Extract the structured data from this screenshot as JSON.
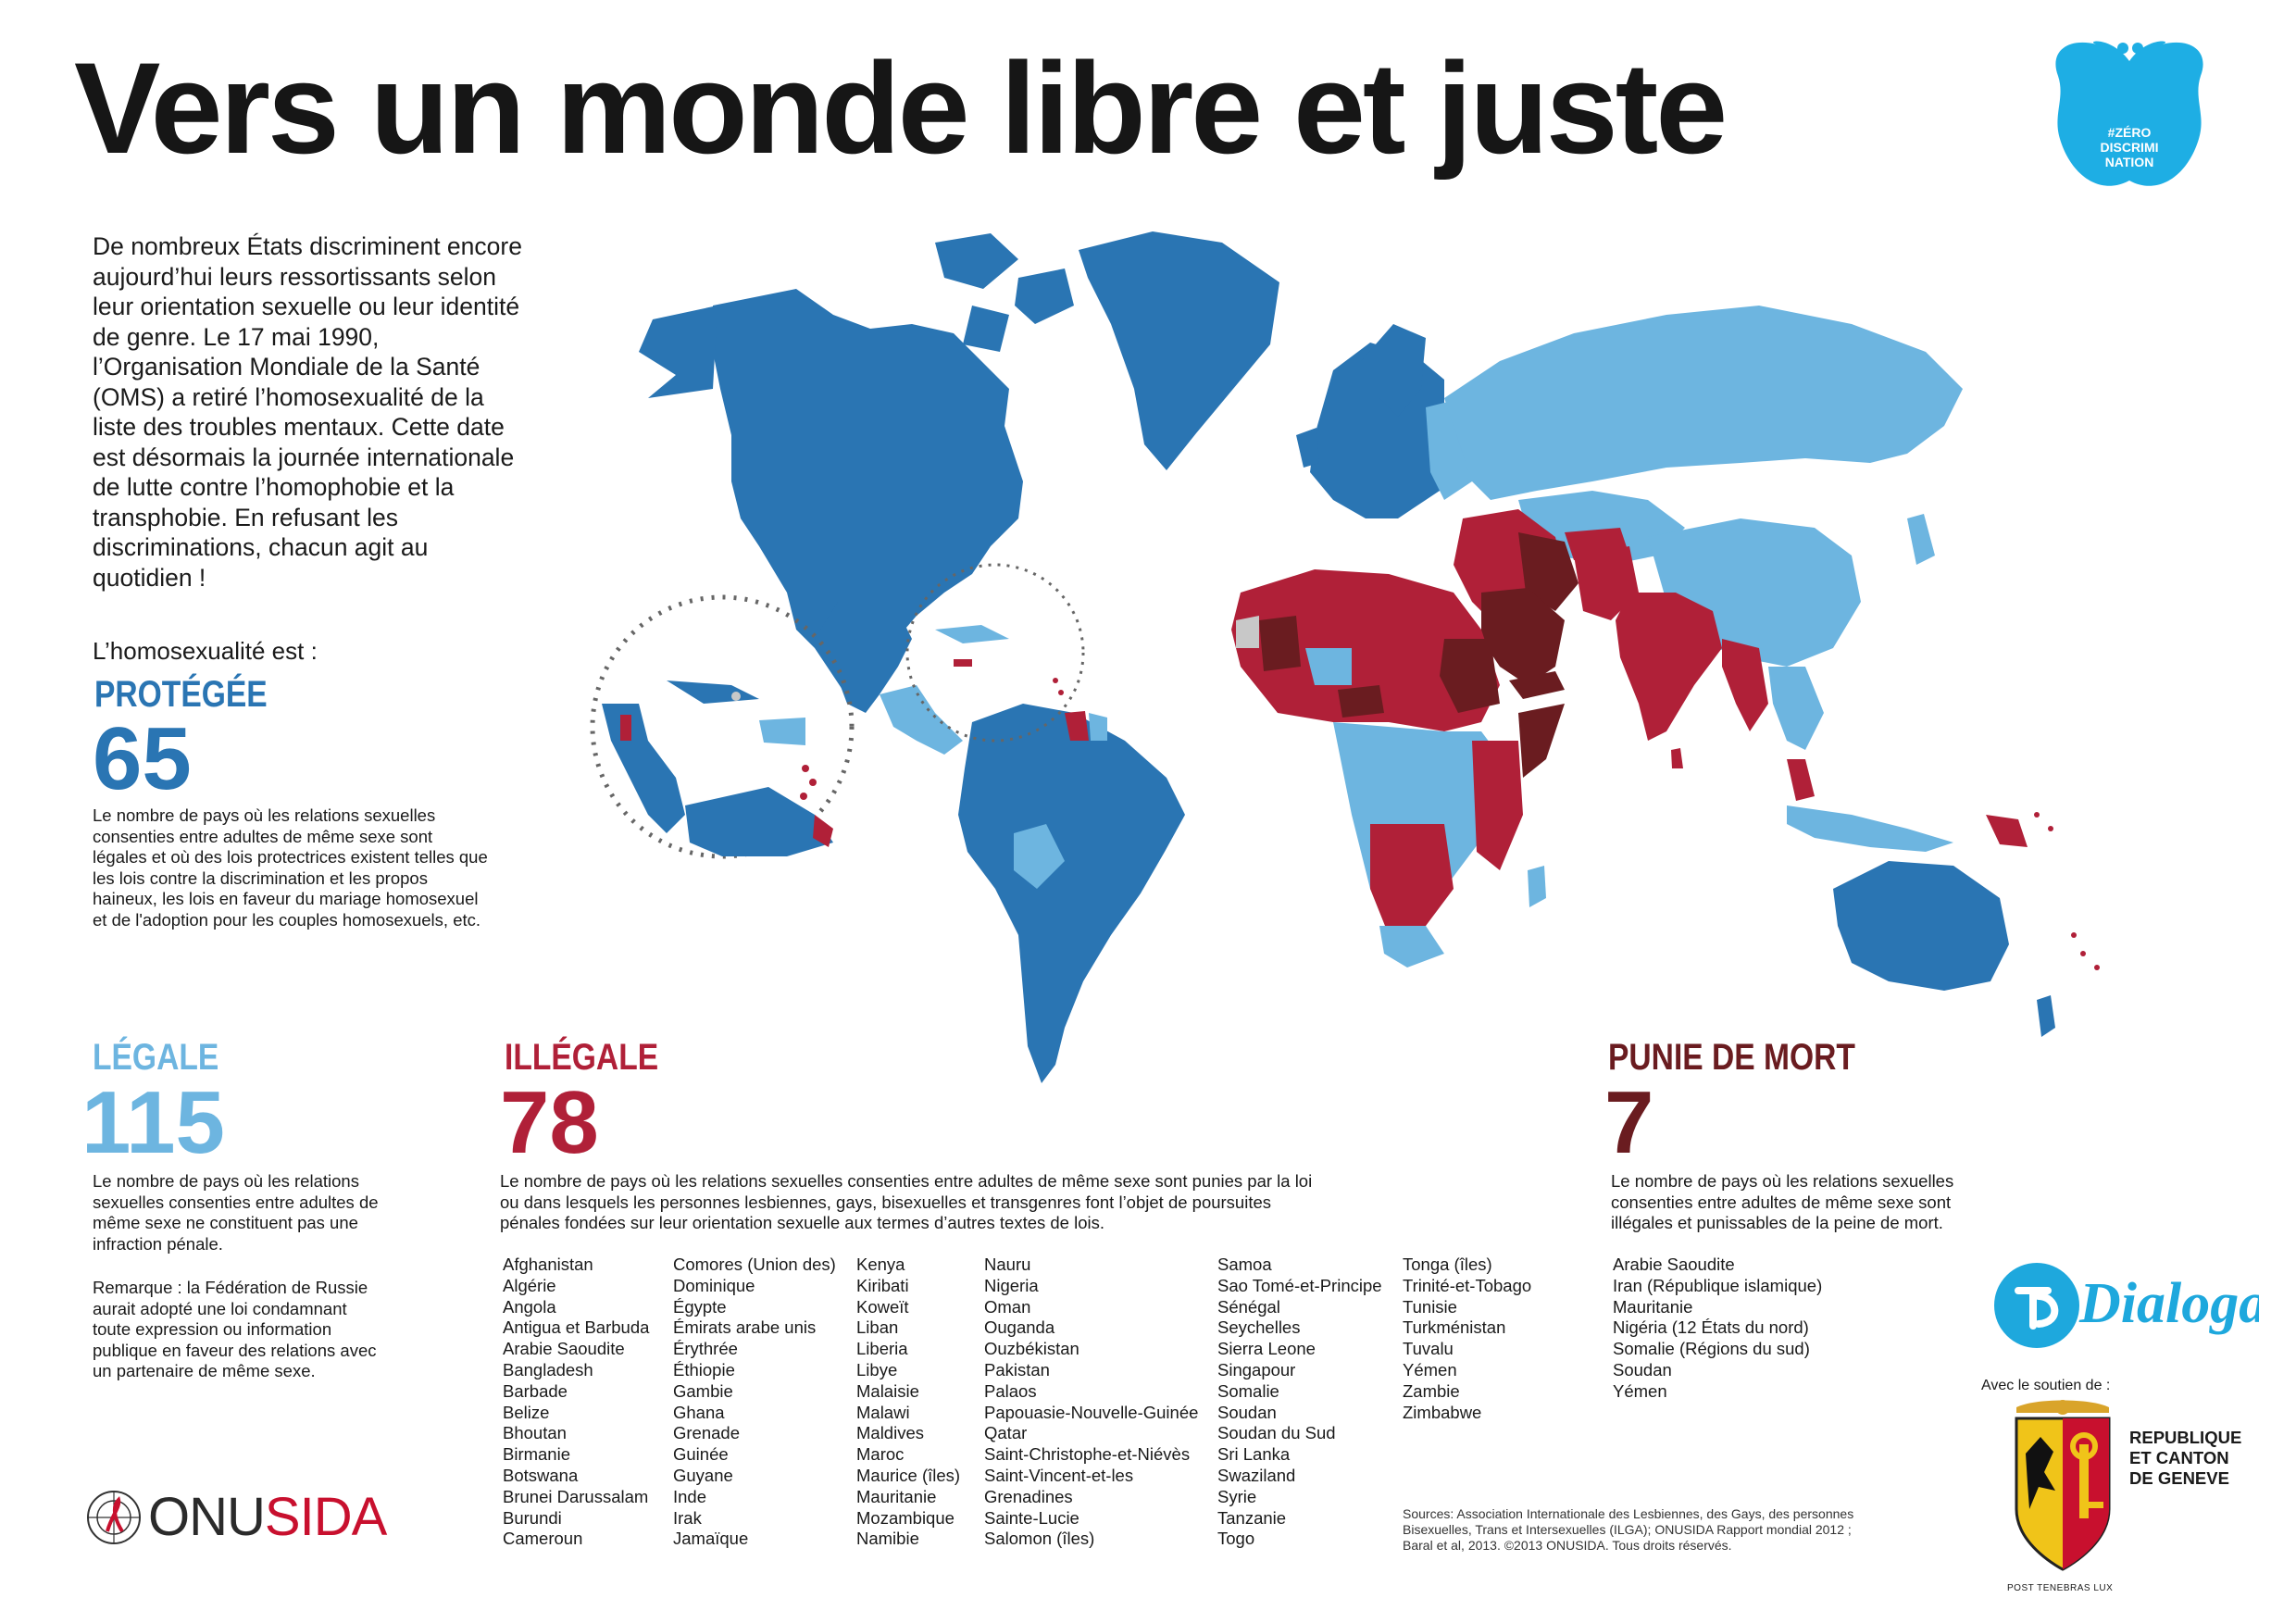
{
  "title": "Vers un monde libre et juste",
  "intro": "De nombreux États discriminent encore aujourd’hui leurs ressortissants selon leur orientation sexuelle ou leur identité de genre. Le 17 mai 1990, l’Organisation Mondiale de la Santé (OMS) a retiré l’homosexualité de la liste des troubles mentaux. Cette date est désormais la journée internationale de lutte contre l’homophobie et la transphobie. En refusant les discriminations, chacun agit au quotidien !",
  "homo_label": "L’homosexualité est :",
  "colors": {
    "protegee": "#2a75b3",
    "legale": "#6db5e0",
    "illegale": "#b02038",
    "punie": "#6a1c20",
    "no_data": "#c8c8c8"
  },
  "badge": {
    "text": "#ZÉRO DISCRIMI NATION",
    "color": "#1eaee4"
  },
  "protegee": {
    "title": "PROTÉGÉE",
    "number": "65",
    "desc": "Le nombre de pays où les relations sexuelles consenties entre adultes de même sexe sont légales et où des lois protectrices existent telles que les lois contre la discrimination et les propos haineux, les lois en faveur du mariage homosexuel et de l'adoption pour les couples homosexuels, etc."
  },
  "legale": {
    "title": "LÉGALE",
    "number": "115",
    "desc": "Le nombre de pays où les relations sexuelles consenties entre adultes de même sexe ne constituent pas une infraction pénale.",
    "note": "Remarque : la Fédération de Russie aurait adopté une loi condamnant toute expression ou information publique en faveur des relations avec un partenaire de même sexe."
  },
  "illegale": {
    "title": "ILLÉGALE",
    "number": "78",
    "desc": "Le nombre de pays où les relations sexuelles consenties entre adultes de même sexe sont punies par la loi ou dans lesquels les personnes lesbiennes, gays, bisexuelles et transgenres font l’objet de poursuites pénales fondées sur leur orientation sexuelle aux termes d’autres textes de lois.",
    "countries": [
      [
        "Afghanistan",
        "Algérie",
        "Angola",
        "Antigua et Barbuda",
        "Arabie Saoudite",
        "Bangladesh",
        "Barbade",
        "Belize",
        "Bhoutan",
        "Birmanie",
        "Botswana",
        "Brunei Darussalam",
        "Burundi",
        "Cameroun"
      ],
      [
        "Comores (Union des)",
        "Dominique",
        "Égypte",
        "Émirats arabe unis",
        "Érythrée",
        "Éthiopie",
        "Gambie",
        "Ghana",
        "Grenade",
        "Guinée",
        "Guyane",
        "Inde",
        "Irak",
        "Jamaïque"
      ],
      [
        "Kenya",
        "Kiribati",
        "Koweït",
        "Liban",
        "Liberia",
        "Libye",
        "Malaisie",
        "Malawi",
        "Maldives",
        "Maroc",
        "Maurice (îles)",
        "Mauritanie",
        "Mozambique",
        "Namibie"
      ],
      [
        "Nauru",
        "Nigeria",
        "Oman",
        "Ouganda",
        "Ouzbékistan",
        "Pakistan",
        "Palaos",
        "Papouasie-Nouvelle-Guinée",
        "Qatar",
        "Saint-Christophe-et-Niévès",
        "Saint-Vincent-et-les",
        "Grenadines",
        "Sainte-Lucie",
        "Salomon (îles)"
      ],
      [
        "Samoa",
        "Sao Tomé-et-Principe",
        "Sénégal",
        "Seychelles",
        "Sierra Leone",
        "Singapour",
        "Somalie",
        "Soudan",
        "Soudan du Sud",
        "Sri Lanka",
        "Swaziland",
        "Syrie",
        "Tanzanie",
        "Togo"
      ],
      [
        "Tonga (îles)",
        "Trinité-et-Tobago",
        "Tunisie",
        "Turkménistan",
        "Tuvalu",
        "Yémen",
        "Zambie",
        "Zimbabwe"
      ]
    ]
  },
  "punie": {
    "title": "PUNIE DE MORT",
    "number": "7",
    "desc": "Le nombre de pays où les relations sexuelles consenties entre adultes de même sexe sont illégales et punissables de la peine de mort.",
    "countries": [
      "Arabie Saoudite",
      "Iran (République islamique)",
      "Mauritanie",
      "Nigéria (12 États du nord)",
      "Somalie (Régions du sud)",
      "Soudan",
      "Yémen"
    ]
  },
  "sources": "Sources: Association Internationale des Lesbiennes, des Gays, des personnes Bisexuelles, Trans et Intersexuelles (ILGA); ONUSIDA Rapport mondial 2012 ; Baral et al, 2013. ©2013 ONUSIDA. Tous droits réservés.",
  "logos": {
    "onusida_prefix": "ONU",
    "onusida_suffix": "SIDA",
    "dialogai": "Dialogai",
    "soutien": "Avec le soutien de :",
    "geneve": [
      "REPUBLIQUE",
      "ET CANTON",
      "DE GENEVE"
    ],
    "motto": "POST TENEBRAS LUX"
  }
}
